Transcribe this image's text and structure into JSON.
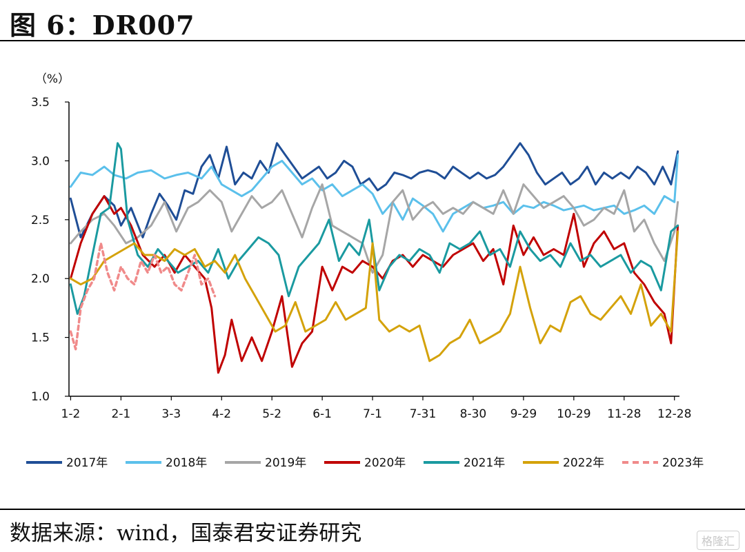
{
  "header": {
    "title": "图  6：DR007"
  },
  "footer": {
    "source": "数据来源：wind，国泰君安证券研究",
    "watermark": "格隆汇"
  },
  "colors": {
    "2017": "#1f4e96",
    "2018": "#5bc0eb",
    "2019": "#a6a6a6",
    "2020": "#c00000",
    "2021": "#1a9aa0",
    "2022": "#d4a20a",
    "2023": "#f08a8a"
  },
  "chart_data": {
    "type": "line",
    "unit_label": "（%）",
    "ylim": [
      1.0,
      3.5
    ],
    "yticks": [
      "1.0",
      "1.5",
      "2.0",
      "2.5",
      "3.0",
      "3.5"
    ],
    "xlim": [
      1,
      365
    ],
    "xticks": [
      {
        "label": "1-2",
        "day": 2
      },
      {
        "label": "2-1",
        "day": 32
      },
      {
        "label": "3-3",
        "day": 62
      },
      {
        "label": "4-2",
        "day": 92
      },
      {
        "label": "5-2",
        "day": 122
      },
      {
        "label": "6-1",
        "day": 152
      },
      {
        "label": "7-1",
        "day": 182
      },
      {
        "label": "7-31",
        "day": 212
      },
      {
        "label": "8-30",
        "day": 242
      },
      {
        "label": "9-29",
        "day": 272
      },
      {
        "label": "10-29",
        "day": 302
      },
      {
        "label": "11-28",
        "day": 332
      },
      {
        "label": "12-28",
        "day": 362
      }
    ],
    "legend_position": "bottom",
    "series": [
      {
        "name": "2017年",
        "dash": false,
        "x": [
          2,
          8,
          15,
          22,
          28,
          32,
          38,
          45,
          50,
          55,
          60,
          65,
          70,
          75,
          80,
          85,
          90,
          95,
          100,
          105,
          110,
          115,
          120,
          125,
          130,
          135,
          140,
          145,
          150,
          155,
          160,
          165,
          170,
          175,
          180,
          185,
          190,
          195,
          200,
          205,
          210,
          215,
          220,
          225,
          230,
          235,
          240,
          245,
          250,
          255,
          260,
          265,
          270,
          275,
          280,
          285,
          290,
          295,
          300,
          305,
          310,
          315,
          320,
          325,
          330,
          335,
          340,
          345,
          350,
          355,
          360,
          364
        ],
        "y": [
          2.68,
          2.35,
          2.55,
          2.7,
          2.62,
          2.45,
          2.6,
          2.35,
          2.55,
          2.72,
          2.62,
          2.5,
          2.75,
          2.72,
          2.95,
          3.05,
          2.85,
          3.12,
          2.8,
          2.9,
          2.85,
          3.0,
          2.9,
          3.15,
          3.05,
          2.95,
          2.85,
          2.9,
          2.95,
          2.85,
          2.9,
          3.0,
          2.95,
          2.8,
          2.85,
          2.75,
          2.8,
          2.9,
          2.88,
          2.85,
          2.9,
          2.92,
          2.9,
          2.85,
          2.95,
          2.9,
          2.85,
          2.9,
          2.85,
          2.88,
          2.95,
          3.05,
          3.15,
          3.05,
          2.9,
          2.8,
          2.85,
          2.9,
          2.8,
          2.85,
          2.95,
          2.8,
          2.9,
          2.85,
          2.9,
          2.85,
          2.95,
          2.9,
          2.8,
          2.95,
          2.8,
          3.08
        ]
      },
      {
        "name": "2018年",
        "dash": false,
        "x": [
          2,
          8,
          15,
          22,
          28,
          35,
          42,
          50,
          58,
          65,
          72,
          80,
          86,
          92,
          98,
          104,
          110,
          116,
          122,
          128,
          134,
          140,
          146,
          152,
          158,
          164,
          170,
          176,
          182,
          188,
          194,
          200,
          206,
          212,
          218,
          224,
          230,
          236,
          242,
          248,
          254,
          260,
          266,
          272,
          278,
          284,
          290,
          296,
          302,
          308,
          314,
          320,
          326,
          332,
          338,
          344,
          350,
          356,
          362,
          364
        ],
        "y": [
          2.78,
          2.9,
          2.88,
          2.95,
          2.88,
          2.85,
          2.9,
          2.92,
          2.85,
          2.88,
          2.9,
          2.85,
          2.95,
          2.8,
          2.75,
          2.7,
          2.75,
          2.85,
          2.95,
          3.0,
          2.9,
          2.8,
          2.85,
          2.75,
          2.8,
          2.7,
          2.75,
          2.8,
          2.72,
          2.55,
          2.65,
          2.5,
          2.68,
          2.62,
          2.55,
          2.4,
          2.55,
          2.6,
          2.65,
          2.6,
          2.62,
          2.65,
          2.55,
          2.62,
          2.6,
          2.65,
          2.62,
          2.58,
          2.6,
          2.62,
          2.58,
          2.6,
          2.62,
          2.55,
          2.58,
          2.62,
          2.55,
          2.7,
          2.65,
          3.05
        ]
      },
      {
        "name": "2019年",
        "dash": false,
        "x": [
          2,
          8,
          15,
          22,
          28,
          35,
          42,
          50,
          58,
          65,
          72,
          78,
          85,
          92,
          98,
          104,
          110,
          116,
          122,
          128,
          134,
          140,
          146,
          152,
          158,
          164,
          170,
          176,
          182,
          188,
          194,
          200,
          206,
          212,
          218,
          224,
          230,
          236,
          242,
          248,
          254,
          260,
          266,
          272,
          278,
          284,
          290,
          296,
          302,
          308,
          314,
          320,
          326,
          332,
          338,
          344,
          350,
          356,
          362,
          364
        ],
        "y": [
          2.3,
          2.4,
          2.5,
          2.55,
          2.45,
          2.3,
          2.35,
          2.45,
          2.65,
          2.4,
          2.6,
          2.65,
          2.75,
          2.65,
          2.4,
          2.55,
          2.7,
          2.6,
          2.65,
          2.75,
          2.55,
          2.35,
          2.6,
          2.8,
          2.45,
          2.4,
          2.35,
          2.3,
          2.05,
          2.2,
          2.65,
          2.75,
          2.5,
          2.6,
          2.65,
          2.55,
          2.6,
          2.55,
          2.65,
          2.6,
          2.55,
          2.75,
          2.55,
          2.8,
          2.7,
          2.6,
          2.65,
          2.7,
          2.6,
          2.45,
          2.5,
          2.6,
          2.55,
          2.75,
          2.4,
          2.5,
          2.3,
          2.15,
          2.4,
          2.65
        ]
      },
      {
        "name": "2020年",
        "dash": false,
        "x": [
          2,
          8,
          15,
          22,
          28,
          32,
          38,
          45,
          52,
          58,
          64,
          70,
          76,
          82,
          86,
          90,
          94,
          98,
          104,
          110,
          116,
          122,
          128,
          134,
          140,
          146,
          152,
          158,
          164,
          170,
          176,
          182,
          188,
          194,
          200,
          206,
          212,
          218,
          224,
          230,
          236,
          242,
          248,
          254,
          260,
          266,
          272,
          278,
          284,
          290,
          296,
          302,
          308,
          314,
          320,
          326,
          332,
          338,
          344,
          350,
          356,
          360,
          364
        ],
        "y": [
          2.0,
          2.3,
          2.55,
          2.7,
          2.55,
          2.6,
          2.45,
          2.2,
          2.1,
          2.2,
          2.05,
          2.2,
          2.1,
          2.0,
          1.75,
          1.2,
          1.35,
          1.65,
          1.3,
          1.5,
          1.3,
          1.55,
          1.85,
          1.25,
          1.45,
          1.55,
          2.1,
          1.9,
          2.1,
          2.05,
          2.15,
          2.1,
          2.0,
          2.15,
          2.2,
          2.1,
          2.2,
          2.15,
          2.1,
          2.2,
          2.25,
          2.3,
          2.15,
          2.25,
          1.95,
          2.45,
          2.2,
          2.35,
          2.2,
          2.25,
          2.2,
          2.55,
          2.1,
          2.3,
          2.4,
          2.25,
          2.3,
          2.05,
          1.95,
          1.8,
          1.7,
          1.45,
          2.45
        ]
      },
      {
        "name": "2021年",
        "dash": false,
        "x": [
          2,
          6,
          10,
          15,
          20,
          25,
          30,
          32,
          36,
          42,
          48,
          54,
          60,
          66,
          72,
          78,
          84,
          90,
          96,
          102,
          108,
          114,
          120,
          126,
          132,
          138,
          144,
          150,
          156,
          162,
          168,
          174,
          180,
          186,
          192,
          198,
          204,
          210,
          216,
          222,
          228,
          234,
          240,
          246,
          252,
          258,
          264,
          270,
          276,
          282,
          288,
          294,
          300,
          306,
          312,
          318,
          324,
          330,
          336,
          342,
          348,
          354,
          360,
          364
        ],
        "y": [
          1.95,
          1.7,
          1.85,
          2.2,
          2.55,
          2.6,
          3.15,
          3.1,
          2.5,
          2.2,
          2.1,
          2.25,
          2.15,
          2.05,
          2.1,
          2.15,
          2.05,
          2.25,
          2.0,
          2.15,
          2.25,
          2.35,
          2.3,
          2.2,
          1.85,
          2.1,
          2.2,
          2.3,
          2.5,
          2.15,
          2.3,
          2.2,
          2.5,
          1.9,
          2.1,
          2.2,
          2.15,
          2.25,
          2.2,
          2.05,
          2.3,
          2.25,
          2.3,
          2.4,
          2.2,
          2.25,
          2.1,
          2.4,
          2.25,
          2.15,
          2.2,
          2.1,
          2.3,
          2.15,
          2.2,
          2.1,
          2.15,
          2.2,
          2.05,
          2.15,
          2.1,
          1.9,
          2.4,
          2.45
        ]
      },
      {
        "name": "2022年",
        "dash": false,
        "x": [
          2,
          8,
          15,
          22,
          28,
          34,
          40,
          46,
          52,
          58,
          64,
          70,
          76,
          82,
          88,
          94,
          100,
          106,
          112,
          118,
          124,
          130,
          136,
          142,
          148,
          154,
          160,
          166,
          172,
          178,
          182,
          186,
          192,
          198,
          204,
          210,
          216,
          222,
          228,
          234,
          240,
          246,
          252,
          258,
          264,
          270,
          276,
          282,
          288,
          294,
          300,
          306,
          312,
          318,
          324,
          330,
          336,
          342,
          348,
          354,
          360,
          364
        ],
        "y": [
          2.0,
          1.95,
          2.0,
          2.15,
          2.2,
          2.25,
          2.3,
          2.2,
          2.2,
          2.15,
          2.25,
          2.2,
          2.25,
          2.1,
          2.15,
          2.05,
          2.2,
          2.0,
          1.85,
          1.7,
          1.55,
          1.6,
          1.8,
          1.55,
          1.6,
          1.65,
          1.8,
          1.65,
          1.7,
          1.75,
          2.3,
          1.65,
          1.55,
          1.6,
          1.55,
          1.6,
          1.3,
          1.35,
          1.45,
          1.5,
          1.65,
          1.45,
          1.5,
          1.55,
          1.7,
          2.1,
          1.75,
          1.45,
          1.6,
          1.55,
          1.8,
          1.85,
          1.7,
          1.65,
          1.75,
          1.85,
          1.7,
          1.95,
          1.6,
          1.7,
          1.55,
          2.4
        ]
      },
      {
        "name": "2023年",
        "dash": true,
        "x": [
          2,
          5,
          8,
          12,
          16,
          20,
          24,
          28,
          32,
          36,
          40,
          44,
          48,
          52,
          56,
          60,
          64,
          68,
          72,
          76,
          80,
          84,
          88
        ],
        "y": [
          1.55,
          1.4,
          1.75,
          1.9,
          2.0,
          2.3,
          2.05,
          1.9,
          2.1,
          2.0,
          1.95,
          2.15,
          2.05,
          2.2,
          2.05,
          2.1,
          1.95,
          1.9,
          2.05,
          2.2,
          1.95,
          2.0,
          1.85
        ]
      }
    ]
  }
}
